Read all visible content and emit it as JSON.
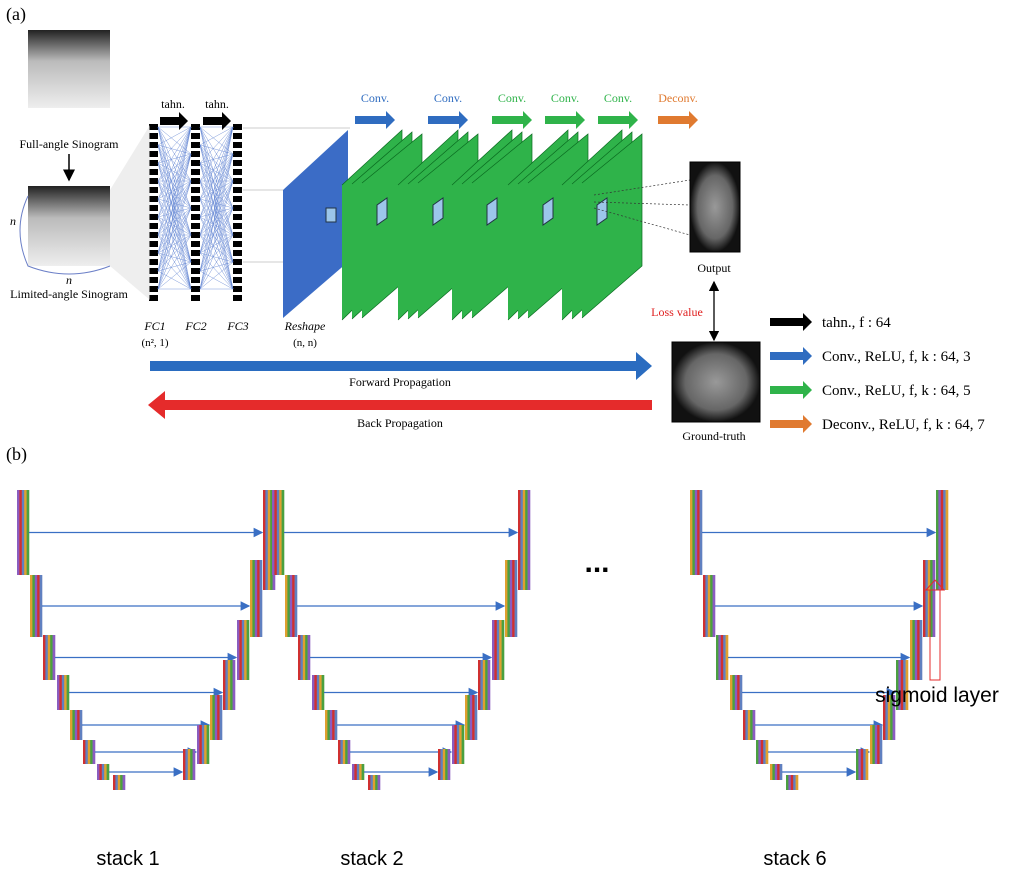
{
  "panel_a": {
    "label": "(a)",
    "inputs": {
      "full": "Full-angle Sinogram",
      "limited": "Limited-angle Sinogram",
      "n_side": "n",
      "n_bottom": "n"
    },
    "fc_activations": [
      "tahn.",
      "tahn."
    ],
    "fc_layers": [
      {
        "name": "FC1",
        "shape": "(n², 1)"
      },
      {
        "name": "FC2"
      },
      {
        "name": "FC3"
      }
    ],
    "reshape": {
      "name": "Reshape",
      "shape": "(n, n)"
    },
    "conv_labels": [
      "Conv.",
      "Conv.",
      "Conv.",
      "Conv.",
      "Conv.",
      "Deconv."
    ],
    "output": "Output",
    "loss": "Loss value",
    "ground_truth": "Ground-truth",
    "forward": "Forward Propagation",
    "back": "Back Propagation",
    "legend": [
      "tahn., f : 64",
      "Conv., ReLU, f, k : 64, 3",
      "Conv., ReLU, f, k : 64, 5",
      "Deconv., ReLU, f, k : 64, 7"
    ]
  },
  "panel_b": {
    "label": "(b)",
    "ellipsis": "...",
    "sigmoid": "sigmoid layer",
    "stacks": [
      "stack 1",
      "stack 2",
      "stack 6"
    ]
  }
}
